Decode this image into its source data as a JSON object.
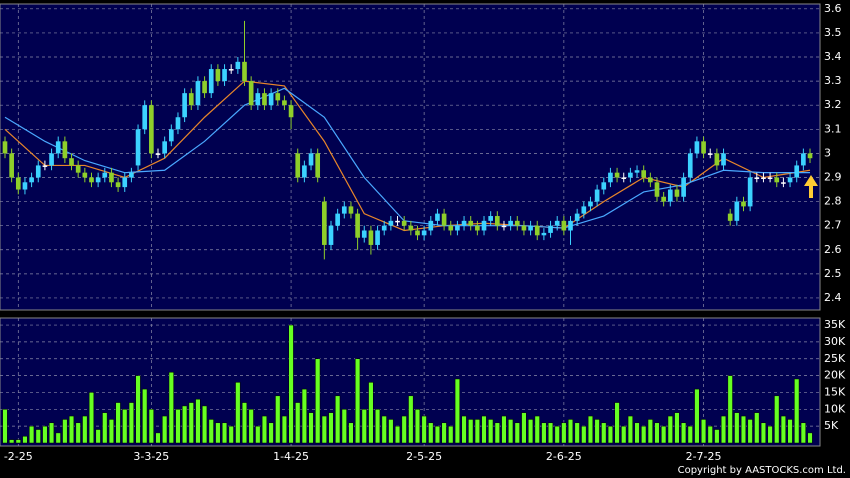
{
  "chart_data": [
    {
      "type": "candlestick",
      "up_color": "#3cd2ff",
      "down_color": "#8fcf2a",
      "flat_color": "#ffffff",
      "background": "#000050",
      "grid": true,
      "xlim": [
        -0.75,
        122.5
      ],
      "xticks": [
        {
          "value": 2,
          "label": "-2-25"
        },
        {
          "value": 22,
          "label": "3-3-25"
        },
        {
          "value": 43,
          "label": "1-4-25"
        },
        {
          "value": 63,
          "label": "2-5-25"
        },
        {
          "value": 84,
          "label": "2-6-25"
        },
        {
          "value": 105,
          "label": "2-7-25"
        }
      ],
      "ylim": [
        2.35,
        3.62
      ],
      "yticks": [
        2.4,
        2.5,
        2.6,
        2.7,
        2.8,
        2.9,
        3,
        3.1,
        3.2,
        3.3,
        3.4,
        3.5,
        3.6
      ],
      "open": [
        3.05,
        3.0,
        2.9,
        2.85,
        2.88,
        2.9,
        2.95,
        2.95,
        3.0,
        3.05,
        2.98,
        2.95,
        2.92,
        2.9,
        2.88,
        2.9,
        2.92,
        2.88,
        2.86,
        2.9,
        2.95,
        3.1,
        3.2,
        3.0,
        3.0,
        3.05,
        3.1,
        3.15,
        3.25,
        3.2,
        3.3,
        3.25,
        3.35,
        3.3,
        3.35,
        3.35,
        3.38,
        3.3,
        3.2,
        3.25,
        3.2,
        3.25,
        3.22,
        3.2,
        3.0,
        2.9,
        2.95,
        3.0,
        2.8,
        2.62,
        2.7,
        2.75,
        2.78,
        2.75,
        2.65,
        2.68,
        2.62,
        2.68,
        2.7,
        2.72,
        2.72,
        2.7,
        2.68,
        2.66,
        2.68,
        2.72,
        2.75,
        2.7,
        2.68,
        2.7,
        2.72,
        2.7,
        2.68,
        2.72,
        2.74,
        2.7,
        2.7,
        2.72,
        2.7,
        2.68,
        2.7,
        2.66,
        2.67,
        2.7,
        2.72,
        2.68,
        2.72,
        2.75,
        2.78,
        2.8,
        2.85,
        2.88,
        2.92,
        2.9,
        2.9,
        2.92,
        2.93,
        2.9,
        2.88,
        2.82,
        2.8,
        2.85,
        2.82,
        2.9,
        3.0,
        3.05,
        3.0,
        3.0,
        2.95,
        2.75,
        2.72,
        2.8,
        2.78,
        2.9,
        2.9,
        2.9,
        2.9,
        2.88,
        2.88,
        2.9,
        2.95,
        3.0
      ],
      "high": [
        3.07,
        3.02,
        2.92,
        2.9,
        2.92,
        2.97,
        2.97,
        3.02,
        3.07,
        3.07,
        3.0,
        2.97,
        2.94,
        2.92,
        2.92,
        2.94,
        2.94,
        2.9,
        2.92,
        2.94,
        3.12,
        3.22,
        3.22,
        3.02,
        3.07,
        3.12,
        3.17,
        3.27,
        3.27,
        3.32,
        3.32,
        3.37,
        3.37,
        3.37,
        3.37,
        3.4,
        3.55,
        3.32,
        3.27,
        3.27,
        3.27,
        3.27,
        3.24,
        3.22,
        3.02,
        2.97,
        3.02,
        3.02,
        2.82,
        2.72,
        2.77,
        2.8,
        2.8,
        2.77,
        2.7,
        2.7,
        2.7,
        2.72,
        2.74,
        2.74,
        2.74,
        2.72,
        2.7,
        2.7,
        2.74,
        2.77,
        2.77,
        2.72,
        2.72,
        2.74,
        2.74,
        2.72,
        2.74,
        2.76,
        2.76,
        2.72,
        2.74,
        2.74,
        2.72,
        2.72,
        2.72,
        2.69,
        2.72,
        2.74,
        2.74,
        2.74,
        2.77,
        2.8,
        2.82,
        2.87,
        2.9,
        2.94,
        2.94,
        2.92,
        2.94,
        2.95,
        2.95,
        2.92,
        2.9,
        2.84,
        2.87,
        2.87,
        2.92,
        3.02,
        3.07,
        3.07,
        3.02,
        3.02,
        3.02,
        2.77,
        2.82,
        2.82,
        2.92,
        2.92,
        2.92,
        2.92,
        2.92,
        2.9,
        2.92,
        2.97,
        3.02,
        3.02
      ],
      "low": [
        2.98,
        2.88,
        2.83,
        2.83,
        2.86,
        2.88,
        2.93,
        2.93,
        2.98,
        2.96,
        2.93,
        2.9,
        2.88,
        2.86,
        2.86,
        2.88,
        2.86,
        2.84,
        2.84,
        2.88,
        2.93,
        3.08,
        2.98,
        2.98,
        2.98,
        3.03,
        3.08,
        3.13,
        3.18,
        3.18,
        3.23,
        3.23,
        3.28,
        3.28,
        3.33,
        3.33,
        3.28,
        3.18,
        3.18,
        3.18,
        3.18,
        3.2,
        3.18,
        3.1,
        2.88,
        2.88,
        2.93,
        2.88,
        2.56,
        2.6,
        2.68,
        2.73,
        2.73,
        2.6,
        2.63,
        2.58,
        2.6,
        2.66,
        2.68,
        2.7,
        2.68,
        2.66,
        2.64,
        2.64,
        2.66,
        2.7,
        2.68,
        2.66,
        2.66,
        2.68,
        2.68,
        2.66,
        2.66,
        2.7,
        2.68,
        2.68,
        2.68,
        2.68,
        2.66,
        2.66,
        2.64,
        2.64,
        2.65,
        2.68,
        2.66,
        2.62,
        2.7,
        2.73,
        2.76,
        2.78,
        2.83,
        2.86,
        2.88,
        2.88,
        2.88,
        2.9,
        2.88,
        2.86,
        2.8,
        2.78,
        2.78,
        2.8,
        2.8,
        2.88,
        2.98,
        2.98,
        2.98,
        2.93,
        2.93,
        2.7,
        2.7,
        2.76,
        2.76,
        2.88,
        2.88,
        2.88,
        2.86,
        2.86,
        2.86,
        2.88,
        2.93,
        2.96
      ],
      "close": [
        3.0,
        2.9,
        2.85,
        2.88,
        2.9,
        2.95,
        2.95,
        3.0,
        3.05,
        2.98,
        2.95,
        2.92,
        2.9,
        2.88,
        2.9,
        2.92,
        2.88,
        2.86,
        2.9,
        2.92,
        3.1,
        3.2,
        3.0,
        3.0,
        3.05,
        3.1,
        3.15,
        3.25,
        3.2,
        3.3,
        3.25,
        3.35,
        3.3,
        3.35,
        3.35,
        3.38,
        3.3,
        3.2,
        3.25,
        3.2,
        3.25,
        3.22,
        3.2,
        3.15,
        2.9,
        2.95,
        3.0,
        2.9,
        2.62,
        2.7,
        2.75,
        2.78,
        2.75,
        2.65,
        2.68,
        2.62,
        2.68,
        2.7,
        2.72,
        2.72,
        2.7,
        2.68,
        2.66,
        2.68,
        2.72,
        2.75,
        2.7,
        2.68,
        2.7,
        2.72,
        2.7,
        2.68,
        2.72,
        2.74,
        2.7,
        2.7,
        2.72,
        2.7,
        2.68,
        2.7,
        2.66,
        2.67,
        2.7,
        2.72,
        2.68,
        2.72,
        2.75,
        2.78,
        2.8,
        2.85,
        2.88,
        2.92,
        2.9,
        2.9,
        2.92,
        2.93,
        2.9,
        2.88,
        2.82,
        2.8,
        2.85,
        2.82,
        2.9,
        3.0,
        3.05,
        3.0,
        3.0,
        2.95,
        3.0,
        2.72,
        2.8,
        2.78,
        2.9,
        2.9,
        2.9,
        2.9,
        2.88,
        2.88,
        2.9,
        2.95,
        3.0,
        2.98
      ],
      "series": [
        {
          "color": "#e8862a",
          "x": [
            0,
            6,
            12,
            18,
            24,
            30,
            36,
            42,
            48,
            54,
            60,
            66,
            72,
            78,
            84,
            90,
            96,
            102,
            108,
            114,
            121
          ],
          "values": [
            3.1,
            2.95,
            2.95,
            2.9,
            2.98,
            3.15,
            3.3,
            3.28,
            3.05,
            2.75,
            2.68,
            2.7,
            2.71,
            2.7,
            2.69,
            2.8,
            2.9,
            2.86,
            2.98,
            2.9,
            2.93
          ]
        },
        {
          "color": "#4aa8ff",
          "x": [
            0,
            6,
            12,
            18,
            24,
            30,
            36,
            42,
            48,
            54,
            60,
            66,
            72,
            78,
            84,
            90,
            96,
            102,
            108,
            114,
            121
          ],
          "values": [
            3.15,
            3.05,
            2.97,
            2.92,
            2.93,
            3.05,
            3.2,
            3.27,
            3.15,
            2.9,
            2.72,
            2.7,
            2.7,
            2.7,
            2.69,
            2.74,
            2.84,
            2.87,
            2.93,
            2.92,
            2.92
          ]
        }
      ]
    },
    {
      "type": "bar",
      "color": "#66ff22",
      "ylim": [
        0,
        36500
      ],
      "yticks": [
        {
          "value": 5000,
          "label": "5K"
        },
        {
          "value": 10000,
          "label": "10K"
        },
        {
          "value": 15000,
          "label": "15K"
        },
        {
          "value": 20000,
          "label": "20K"
        },
        {
          "value": 25000,
          "label": "25K"
        },
        {
          "value": 30000,
          "label": "30K"
        },
        {
          "value": 35000,
          "label": "35K"
        }
      ],
      "values": [
        10000,
        1000,
        1000,
        2000,
        5000,
        4000,
        5000,
        6000,
        3000,
        7000,
        8000,
        6000,
        8000,
        15000,
        4000,
        9000,
        7000,
        12000,
        10000,
        12000,
        20000,
        16000,
        10000,
        3000,
        8000,
        21000,
        10000,
        11000,
        12000,
        13000,
        11000,
        7000,
        6000,
        6000,
        5000,
        18000,
        12000,
        10000,
        5000,
        8000,
        6000,
        14000,
        8000,
        35000,
        12000,
        16000,
        9000,
        25000,
        8000,
        9000,
        14000,
        10000,
        6000,
        25000,
        10000,
        18000,
        10000,
        8000,
        7000,
        5000,
        8000,
        14000,
        10000,
        8000,
        6000,
        5000,
        6000,
        5000,
        19000,
        8000,
        7000,
        7000,
        8000,
        7000,
        6000,
        8000,
        7000,
        6000,
        9000,
        7000,
        8000,
        6000,
        6000,
        5000,
        6000,
        7000,
        6000,
        5000,
        8000,
        7000,
        6000,
        5000,
        12000,
        5000,
        8000,
        6000,
        5000,
        7000,
        6000,
        5000,
        8000,
        9000,
        6000,
        5000,
        16000,
        7000,
        5000,
        4000,
        8000,
        20000,
        9000,
        8000,
        7000,
        9000,
        6000,
        5000,
        14000,
        8000,
        7000,
        19000,
        6000,
        3000
      ]
    }
  ],
  "copyright": "Copyright by AASTOCKS.com Ltd."
}
